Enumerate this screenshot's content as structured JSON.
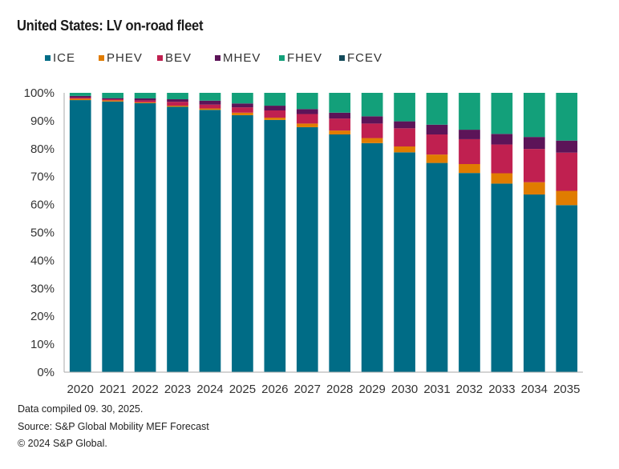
{
  "chart_data": {
    "type": "bar",
    "stacked": true,
    "title": "United States: LV on-road fleet",
    "xlabel": "",
    "ylabel": "",
    "ylim": [
      0,
      100
    ],
    "y_ticks": [
      "0%",
      "10%",
      "20%",
      "30%",
      "40%",
      "50%",
      "60%",
      "70%",
      "80%",
      "90%",
      "100%"
    ],
    "grid": false,
    "legend_position": "top",
    "categories": [
      "2020",
      "2021",
      "2022",
      "2023",
      "2024",
      "2025",
      "2026",
      "2027",
      "2028",
      "2029",
      "2030",
      "2031",
      "2032",
      "2033",
      "2034",
      "2035"
    ],
    "series": [
      {
        "name": "ICE",
        "color": "#006c86",
        "values": [
          97.4,
          96.9,
          96.3,
          95.0,
          93.9,
          92.0,
          90.3,
          87.7,
          85.1,
          82.0,
          78.7,
          74.9,
          71.3,
          67.5,
          63.6,
          59.8
        ]
      },
      {
        "name": "PHEV",
        "color": "#e07c00",
        "values": [
          0.5,
          0.4,
          0.3,
          0.4,
          0.5,
          0.9,
          0.8,
          1.3,
          1.4,
          1.8,
          2.1,
          3.0,
          3.2,
          3.7,
          4.4,
          5.1
        ]
      },
      {
        "name": "BEV",
        "color": "#c02050",
        "values": [
          0.4,
          0.4,
          0.7,
          1.4,
          1.4,
          1.9,
          2.6,
          3.4,
          4.3,
          5.2,
          6.5,
          7.2,
          8.9,
          10.3,
          11.9,
          13.7
        ]
      },
      {
        "name": "MHEV",
        "color": "#5c1458",
        "values": [
          0.6,
          0.4,
          0.7,
          0.9,
          1.4,
          1.4,
          1.7,
          1.8,
          2.1,
          2.6,
          2.5,
          3.5,
          3.4,
          3.8,
          4.3,
          4.3
        ]
      },
      {
        "name": "FHEV",
        "color": "#13a07a",
        "values": [
          1.1,
          1.9,
          2.0,
          2.3,
          2.8,
          3.8,
          4.6,
          5.8,
          7.1,
          8.4,
          10.2,
          11.4,
          13.2,
          14.7,
          15.8,
          17.1
        ]
      },
      {
        "name": "FCEV",
        "color": "#134a5a",
        "values": [
          0,
          0,
          0,
          0,
          0,
          0,
          0,
          0,
          0,
          0,
          0,
          0,
          0,
          0,
          0,
          0
        ]
      }
    ]
  },
  "footer": {
    "compiled": "Data compiled 09. 30, 2025.",
    "source": "Source: S&P Global Mobility MEF Forecast",
    "copyright": "© 2024 S&P Global."
  }
}
